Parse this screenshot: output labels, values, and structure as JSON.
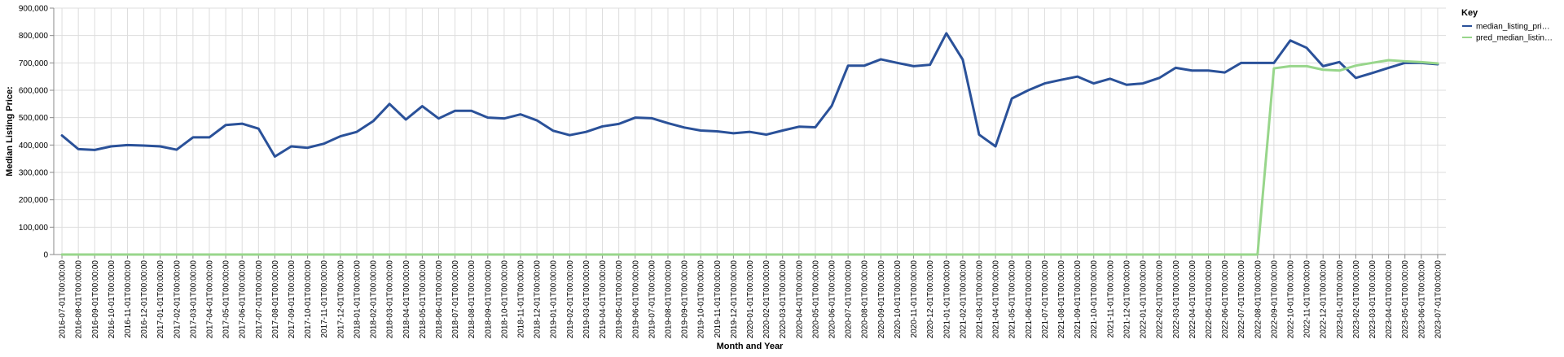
{
  "chart_data": {
    "type": "line",
    "xlabel": "Month and Year",
    "ylabel": "Median Listing Price:",
    "ylim": [
      0,
      900000
    ],
    "yticks": [
      "0",
      "100,000",
      "200,000",
      "300,000",
      "400,000",
      "500,000",
      "600,000",
      "700,000",
      "800,000",
      "900,000"
    ],
    "grid": true,
    "legend": {
      "title": "Key",
      "placement": "top-right"
    },
    "x": [
      "2016-07-01T00:00:00",
      "2016-08-01T00:00:00",
      "2016-09-01T00:00:00",
      "2016-10-01T00:00:00",
      "2016-11-01T00:00:00",
      "2016-12-01T00:00:00",
      "2017-01-01T00:00:00",
      "2017-02-01T00:00:00",
      "2017-03-01T00:00:00",
      "2017-04-01T00:00:00",
      "2017-05-01T00:00:00",
      "2017-06-01T00:00:00",
      "2017-07-01T00:00:00",
      "2017-08-01T00:00:00",
      "2017-09-01T00:00:00",
      "2017-10-01T00:00:00",
      "2017-11-01T00:00:00",
      "2017-12-01T00:00:00",
      "2018-01-01T00:00:00",
      "2018-02-01T00:00:00",
      "2018-03-01T00:00:00",
      "2018-04-01T00:00:00",
      "2018-05-01T00:00:00",
      "2018-06-01T00:00:00",
      "2018-07-01T00:00:00",
      "2018-08-01T00:00:00",
      "2018-09-01T00:00:00",
      "2018-10-01T00:00:00",
      "2018-11-01T00:00:00",
      "2018-12-01T00:00:00",
      "2019-01-01T00:00:00",
      "2019-02-01T00:00:00",
      "2019-03-01T00:00:00",
      "2019-04-01T00:00:00",
      "2019-05-01T00:00:00",
      "2019-06-01T00:00:00",
      "2019-07-01T00:00:00",
      "2019-08-01T00:00:00",
      "2019-09-01T00:00:00",
      "2019-10-01T00:00:00",
      "2019-11-01T00:00:00",
      "2019-12-01T00:00:00",
      "2020-01-01T00:00:00",
      "2020-02-01T00:00:00",
      "2020-03-01T00:00:00",
      "2020-04-01T00:00:00",
      "2020-05-01T00:00:00",
      "2020-06-01T00:00:00",
      "2020-07-01T00:00:00",
      "2020-08-01T00:00:00",
      "2020-09-01T00:00:00",
      "2020-10-01T00:00:00",
      "2020-11-01T00:00:00",
      "2020-12-01T00:00:00",
      "2021-01-01T00:00:00",
      "2021-02-01T00:00:00",
      "2021-03-01T00:00:00",
      "2021-04-01T00:00:00",
      "2021-05-01T00:00:00",
      "2021-06-01T00:00:00",
      "2021-07-01T00:00:00",
      "2021-08-01T00:00:00",
      "2021-09-01T00:00:00",
      "2021-10-01T00:00:00",
      "2021-11-01T00:00:00",
      "2021-12-01T00:00:00",
      "2022-01-01T00:00:00",
      "2022-02-01T00:00:00",
      "2022-03-01T00:00:00",
      "2022-04-01T00:00:00",
      "2022-05-01T00:00:00",
      "2022-06-01T00:00:00",
      "2022-07-01T00:00:00",
      "2022-08-01T00:00:00",
      "2022-09-01T00:00:00",
      "2022-10-01T00:00:00",
      "2022-11-01T00:00:00",
      "2022-12-01T00:00:00",
      "2023-01-01T00:00:00",
      "2023-02-01T00:00:00",
      "2023-03-01T00:00:00",
      "2023-04-01T00:00:00",
      "2023-05-01T00:00:00",
      "2023-06-01T00:00:00",
      "2023-07-01T00:00:00"
    ],
    "series": [
      {
        "name": "median_listing_pri…",
        "color": "#2a5199",
        "values": [
          435000,
          385000,
          382000,
          395000,
          400000,
          398000,
          395000,
          383000,
          428000,
          428000,
          473000,
          478000,
          460000,
          358000,
          395000,
          390000,
          405000,
          432000,
          448000,
          487000,
          550000,
          493000,
          542000,
          497000,
          525000,
          525000,
          500000,
          497000,
          512000,
          490000,
          452000,
          436000,
          448000,
          468000,
          477000,
          500000,
          498000,
          480000,
          464000,
          453000,
          450000,
          443000,
          448000,
          438000,
          453000,
          467000,
          465000,
          543000,
          690000,
          690000,
          713000,
          700000,
          688000,
          693000,
          808000,
          712000,
          438000,
          395000,
          570000,
          600000,
          625000,
          638000,
          650000,
          625000,
          642000,
          620000,
          625000,
          645000,
          682000,
          672000,
          672000,
          665000,
          700000,
          700000,
          700000,
          782000,
          755000,
          688000,
          703000,
          645000,
          663000,
          682000,
          700000,
          700000,
          695000
        ]
      },
      {
        "name": "pred_median_listin…",
        "color": "#98d68b",
        "values": [
          0,
          0,
          0,
          0,
          0,
          0,
          0,
          0,
          0,
          0,
          0,
          0,
          0,
          0,
          0,
          0,
          0,
          0,
          0,
          0,
          0,
          0,
          0,
          0,
          0,
          0,
          0,
          0,
          0,
          0,
          0,
          0,
          0,
          0,
          0,
          0,
          0,
          0,
          0,
          0,
          0,
          0,
          0,
          0,
          0,
          0,
          0,
          0,
          0,
          0,
          0,
          0,
          0,
          0,
          0,
          0,
          0,
          0,
          0,
          0,
          0,
          0,
          0,
          0,
          0,
          0,
          0,
          0,
          0,
          0,
          0,
          0,
          0,
          0,
          680000,
          688000,
          688000,
          675000,
          672000,
          690000,
          700000,
          710000,
          706000,
          703000,
          698000
        ]
      }
    ]
  }
}
